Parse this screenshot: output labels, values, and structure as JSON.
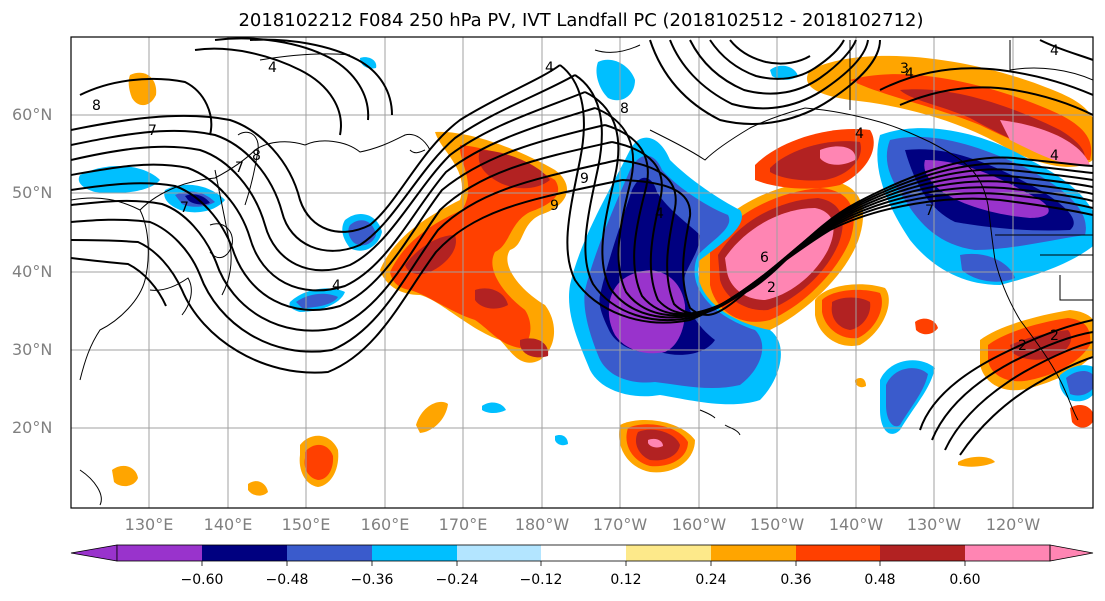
{
  "title": "2018102212 F084 250 hPa PV, IVT Landfall PC (2018102512 - 2018102712)",
  "map": {
    "lat_labels": [
      "60°N",
      "50°N",
      "40°N",
      "30°N",
      "20°N"
    ],
    "lon_labels": [
      "130°E",
      "140°E",
      "150°E",
      "160°E",
      "170°E",
      "180°W",
      "170°W",
      "160°W",
      "150°W",
      "140°W",
      "130°W",
      "120°W"
    ],
    "contour_labels": [
      "4",
      "7",
      "8",
      "8",
      "9",
      "4",
      "4",
      "7",
      "2",
      "4",
      "4",
      "4",
      "6",
      "7",
      "2",
      "7",
      "4",
      "9",
      "3",
      "4",
      "2",
      "8"
    ],
    "colors": {
      "grid": "#a0a0a0",
      "coast": "#000000",
      "contour": "#000000"
    }
  },
  "colorbar": {
    "ticks": [
      "−0.60",
      "−0.48",
      "−0.36",
      "−0.24",
      "−0.12",
      "0.12",
      "0.24",
      "0.36",
      "0.48",
      "0.60"
    ],
    "colors": [
      "#9933cc",
      "#000080",
      "#3a5bcc",
      "#00bfff",
      "#b3e5ff",
      "#ffffff",
      "#fde98a",
      "#ffa500",
      "#ff4000",
      "#b22222",
      "#ff85b3"
    ]
  }
}
